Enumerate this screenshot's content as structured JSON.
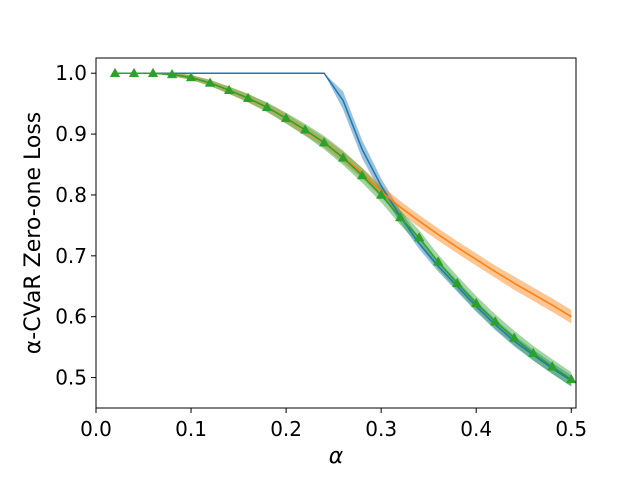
{
  "chart_data": {
    "type": "line",
    "title": "",
    "xlabel": "α",
    "ylabel": "α-CVaR Zero-one Loss",
    "xlim": [
      0.0,
      0.505
    ],
    "ylim": [
      0.45,
      1.025
    ],
    "xticks": [
      0.0,
      0.1,
      0.2,
      0.3,
      0.4,
      0.5
    ],
    "xtick_labels": [
      "0.0",
      "0.1",
      "0.2",
      "0.3",
      "0.4",
      "0.5"
    ],
    "yticks": [
      0.5,
      0.6,
      0.7,
      0.8,
      0.9,
      1.0
    ],
    "ytick_labels": [
      "0.5",
      "0.6",
      "0.7",
      "0.8",
      "0.9",
      "1.0"
    ],
    "grid": false,
    "legend": "none",
    "series": [
      {
        "color": "#1f77b4",
        "marker": "none",
        "x": [
          0.02,
          0.04,
          0.06,
          0.08,
          0.1,
          0.12,
          0.14,
          0.16,
          0.18,
          0.2,
          0.22,
          0.24,
          0.26,
          0.28,
          0.3,
          0.32,
          0.34,
          0.36,
          0.38,
          0.4,
          0.42,
          0.44,
          0.46,
          0.48,
          0.5
        ],
        "y": [
          1.0,
          1.0,
          1.0,
          1.0,
          1.0,
          1.0,
          1.0,
          1.0,
          1.0,
          1.0,
          1.0,
          1.0,
          0.955,
          0.875,
          0.815,
          0.765,
          0.72,
          0.683,
          0.65,
          0.617,
          0.587,
          0.56,
          0.537,
          0.515,
          0.495
        ],
        "band": [
          0,
          0,
          0,
          0,
          0,
          0,
          0,
          0,
          0,
          0,
          0,
          0,
          0.015,
          0.015,
          0.012,
          0.01,
          0.009,
          0.009,
          0.009,
          0.009,
          0.009,
          0.009,
          0.009,
          0.009,
          0.009
        ]
      },
      {
        "color": "#ff7f0e",
        "marker": "none",
        "x": [
          0.02,
          0.04,
          0.06,
          0.08,
          0.1,
          0.12,
          0.14,
          0.16,
          0.18,
          0.2,
          0.22,
          0.24,
          0.26,
          0.28,
          0.3,
          0.32,
          0.34,
          0.36,
          0.38,
          0.4,
          0.42,
          0.44,
          0.46,
          0.48,
          0.5
        ],
        "y": [
          1.0,
          1.0,
          1.0,
          0.998,
          0.993,
          0.984,
          0.972,
          0.959,
          0.944,
          0.926,
          0.906,
          0.886,
          0.862,
          0.836,
          0.806,
          0.78,
          0.757,
          0.735,
          0.714,
          0.694,
          0.674,
          0.655,
          0.637,
          0.619,
          0.6
        ],
        "band": [
          0,
          0,
          0,
          0.003,
          0.004,
          0.005,
          0.006,
          0.007,
          0.007,
          0.008,
          0.008,
          0.008,
          0.009,
          0.009,
          0.01,
          0.01,
          0.01,
          0.01,
          0.01,
          0.01,
          0.01,
          0.011,
          0.011,
          0.011,
          0.011
        ]
      },
      {
        "color": "#2ca02c",
        "marker": "triangle",
        "x": [
          0.02,
          0.04,
          0.06,
          0.08,
          0.1,
          0.12,
          0.14,
          0.16,
          0.18,
          0.2,
          0.22,
          0.24,
          0.26,
          0.28,
          0.3,
          0.32,
          0.34,
          0.36,
          0.38,
          0.4,
          0.42,
          0.44,
          0.46,
          0.48,
          0.5
        ],
        "y": [
          1.0,
          1.0,
          1.0,
          0.998,
          0.993,
          0.984,
          0.972,
          0.959,
          0.944,
          0.926,
          0.907,
          0.886,
          0.861,
          0.832,
          0.8,
          0.763,
          0.73,
          0.69,
          0.655,
          0.622,
          0.592,
          0.565,
          0.54,
          0.518,
          0.497
        ],
        "band": [
          0,
          0,
          0,
          0.003,
          0.004,
          0.005,
          0.006,
          0.007,
          0.008,
          0.009,
          0.01,
          0.011,
          0.012,
          0.012,
          0.012,
          0.012,
          0.012,
          0.012,
          0.012,
          0.012,
          0.012,
          0.012,
          0.012,
          0.012,
          0.012
        ]
      }
    ]
  }
}
